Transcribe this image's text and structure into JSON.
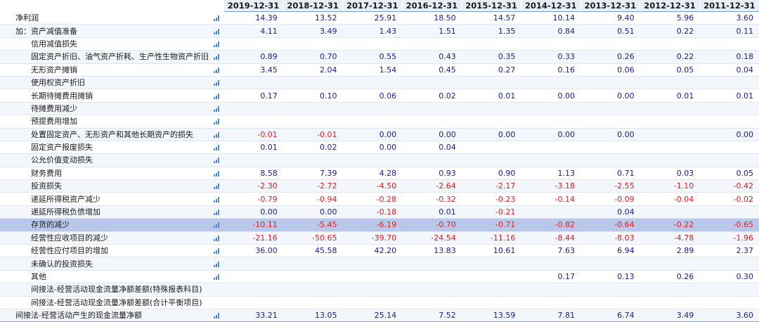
{
  "colors": {
    "positive": "#1a1a9c",
    "negative": "#e51c1c",
    "highlight": "#b9c8ea",
    "icon": "#4f8ad6"
  },
  "years": [
    "2019-12-31",
    "2018-12-31",
    "2017-12-31",
    "2016-12-31",
    "2015-12-31",
    "2014-12-31",
    "2013-12-31",
    "2012-12-31",
    "2011-12-31"
  ],
  "rows": [
    {
      "label": "净利润",
      "level": 0,
      "icon": true,
      "values": [
        "14.39",
        "13.52",
        "25.91",
        "18.50",
        "14.57",
        "10.14",
        "9.40",
        "5.96",
        "3.60"
      ]
    },
    {
      "label": "加：资产减值准备",
      "level": 0,
      "icon": true,
      "values": [
        "4.11",
        "3.49",
        "1.43",
        "1.51",
        "1.35",
        "0.84",
        "0.51",
        "0.22",
        "0.11"
      ]
    },
    {
      "label": "信用减值损失",
      "level": 1,
      "icon": true,
      "values": [
        "",
        "",
        "",
        "",
        "",
        "",
        "",
        "",
        ""
      ]
    },
    {
      "label": "固定资产折旧、油气资产折耗、生产性生物资产折旧",
      "level": 1,
      "icon": true,
      "values": [
        "0.89",
        "0.70",
        "0.55",
        "0.43",
        "0.35",
        "0.33",
        "0.26",
        "0.22",
        "0.18"
      ]
    },
    {
      "label": "无形资产摊销",
      "level": 1,
      "icon": true,
      "values": [
        "3.45",
        "2.04",
        "1.54",
        "0.45",
        "0.27",
        "0.16",
        "0.06",
        "0.05",
        "0.04"
      ]
    },
    {
      "label": "使用权资产折旧",
      "level": 1,
      "icon": true,
      "values": [
        "",
        "",
        "",
        "",
        "",
        "",
        "",
        "",
        ""
      ]
    },
    {
      "label": "长期待摊费用摊销",
      "level": 1,
      "icon": true,
      "values": [
        "0.17",
        "0.10",
        "0.06",
        "0.02",
        "0.01",
        "0.00",
        "0.00",
        "0.01",
        "0.01"
      ]
    },
    {
      "label": "待摊费用减少",
      "level": 1,
      "icon": true,
      "values": [
        "",
        "",
        "",
        "",
        "",
        "",
        "",
        "",
        ""
      ]
    },
    {
      "label": "预提费用增加",
      "level": 1,
      "icon": true,
      "values": [
        "",
        "",
        "",
        "",
        "",
        "",
        "",
        "",
        ""
      ]
    },
    {
      "label": "处置固定资产、无形资产和其他长期资产的损失",
      "level": 1,
      "icon": true,
      "values": [
        "-0.01",
        "-0.01",
        "0.00",
        "0.00",
        "0.00",
        "0.00",
        "0.00",
        "",
        "0.00"
      ]
    },
    {
      "label": "固定资产报废损失",
      "level": 1,
      "icon": true,
      "values": [
        "0.01",
        "0.02",
        "0.00",
        "0.04",
        "",
        "",
        "",
        "",
        ""
      ]
    },
    {
      "label": "公允价值变动损失",
      "level": 1,
      "icon": true,
      "values": [
        "",
        "",
        "",
        "",
        "",
        "",
        "",
        "",
        ""
      ]
    },
    {
      "label": "财务费用",
      "level": 1,
      "icon": true,
      "values": [
        "8.58",
        "7.39",
        "4.28",
        "0.93",
        "0.90",
        "1.13",
        "0.71",
        "0.03",
        "0.05"
      ]
    },
    {
      "label": "投资损失",
      "level": 1,
      "icon": true,
      "values": [
        "-2.30",
        "-2.72",
        "-4.50",
        "-2.64",
        "-2.17",
        "-3.18",
        "-2.55",
        "-1.10",
        "-0.42"
      ]
    },
    {
      "label": "递延所得税资产减少",
      "level": 1,
      "icon": true,
      "values": [
        "-0.79",
        "-0.94",
        "-0.28",
        "-0.32",
        "-0.23",
        "-0.14",
        "-0.09",
        "-0.04",
        "-0.02"
      ]
    },
    {
      "label": "递延所得税负债增加",
      "level": 1,
      "icon": true,
      "values": [
        "0.00",
        "0.00",
        "-0.18",
        "0.01",
        "-0.21",
        "",
        "0.04",
        "",
        ""
      ]
    },
    {
      "label": "存货的减少",
      "level": 1,
      "icon": true,
      "highlight": true,
      "values": [
        "-10.11",
        "-5.45",
        "-6.19",
        "-0.70",
        "-0.71",
        "-0.82",
        "-0.64",
        "-0.22",
        "-0.65"
      ]
    },
    {
      "label": "经营性应收项目的减少",
      "level": 1,
      "icon": true,
      "values": [
        "-21.16",
        "-50.65",
        "-39.70",
        "-24.54",
        "-11.16",
        "-8.44",
        "-8.03",
        "-4.78",
        "-1.96"
      ]
    },
    {
      "label": "经营性应付项目的增加",
      "level": 1,
      "icon": true,
      "values": [
        "36.00",
        "45.58",
        "42.20",
        "13.83",
        "10.61",
        "7.63",
        "6.94",
        "2.89",
        "2.37"
      ]
    },
    {
      "label": "未确认的投资损失",
      "level": 1,
      "icon": true,
      "values": [
        "",
        "",
        "",
        "",
        "",
        "",
        "",
        "",
        ""
      ]
    },
    {
      "label": "其他",
      "level": 1,
      "icon": true,
      "values": [
        "",
        "",
        "",
        "",
        "",
        "0.17",
        "0.13",
        "0.26",
        "0.30"
      ]
    },
    {
      "label": "间接法-经营活动现金流量净额差额(特殊报表科目)",
      "level": 1,
      "icon": false,
      "values": [
        "",
        "",
        "",
        "",
        "",
        "",
        "",
        "",
        ""
      ]
    },
    {
      "label": "间接法-经营活动现金流量净额差额(合计平衡项目)",
      "level": 1,
      "icon": false,
      "values": [
        "",
        "",
        "",
        "",
        "",
        "",
        "",
        "",
        ""
      ]
    },
    {
      "label": "间接法-经营活动产生的现金流量净额",
      "level": 0,
      "icon": true,
      "total": true,
      "values": [
        "33.21",
        "13.05",
        "25.14",
        "7.52",
        "13.59",
        "7.81",
        "6.74",
        "3.49",
        "3.60"
      ]
    }
  ]
}
